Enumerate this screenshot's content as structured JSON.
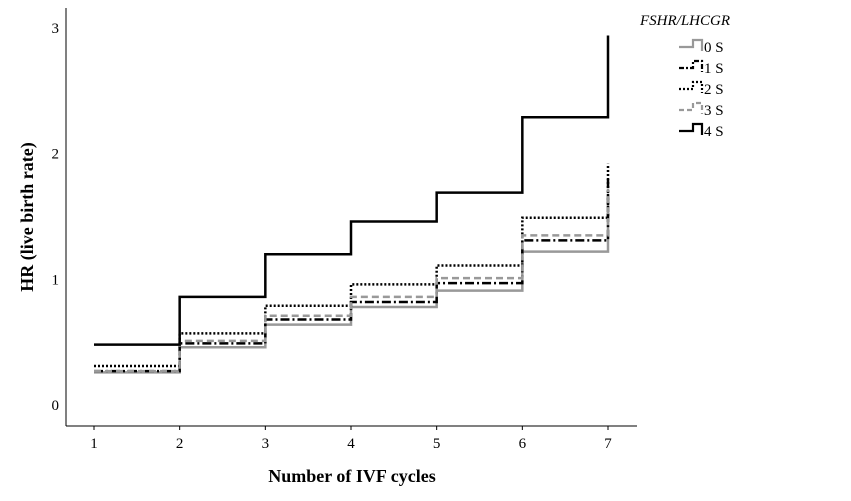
{
  "chart_data": {
    "type": "line",
    "step": true,
    "xlabel": "Number of IVF cycles",
    "ylabel": "HR (live birth rate)",
    "x": [
      1,
      2,
      3,
      4,
      5,
      6,
      7
    ],
    "xlim": [
      0.7,
      7.35
    ],
    "ylim": [
      -0.15,
      3.1
    ],
    "xticks": [
      "1",
      "2",
      "3",
      "4",
      "5",
      "6",
      "7"
    ],
    "yticks": [
      "0",
      "1",
      "2",
      "3"
    ],
    "legend": {
      "title": "FSHR/LHCGR",
      "position": "top-right"
    },
    "series": [
      {
        "name": "0 S",
        "color": "#999999",
        "dash": "solid",
        "values": [
          0.26,
          0.46,
          0.64,
          0.78,
          0.91,
          1.22,
          1.67
        ]
      },
      {
        "name": "1 S",
        "color": "#000000",
        "dash": "dashdot",
        "values": [
          0.27,
          0.49,
          0.68,
          0.82,
          0.97,
          1.31,
          1.81
        ]
      },
      {
        "name": "2 S",
        "color": "#000000",
        "dash": "dotted",
        "values": [
          0.31,
          0.57,
          0.79,
          0.96,
          1.11,
          1.49,
          1.92
        ]
      },
      {
        "name": "3 S",
        "color": "#999999",
        "dash": "dashed",
        "values": [
          0.27,
          0.51,
          0.71,
          0.86,
          1.01,
          1.35,
          1.72
        ]
      },
      {
        "name": "4 S",
        "color": "#000000",
        "dash": "solid",
        "values": [
          0.48,
          0.86,
          1.2,
          1.46,
          1.69,
          2.29,
          2.94
        ]
      }
    ]
  }
}
